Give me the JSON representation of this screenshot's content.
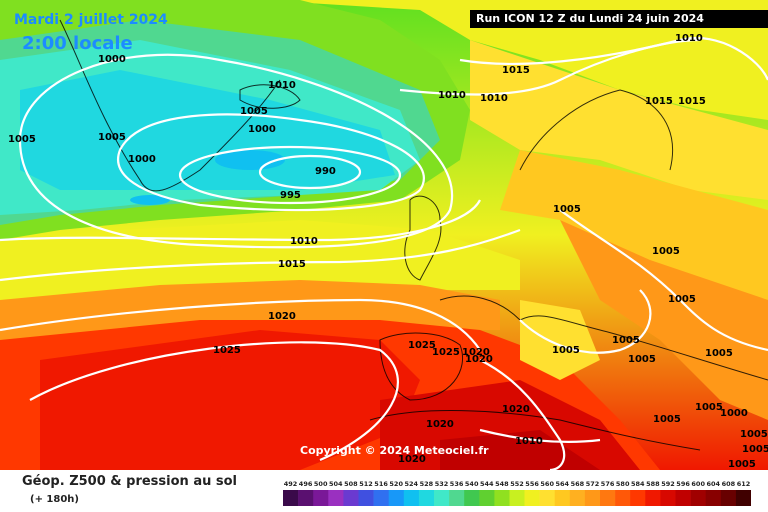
{
  "header": {
    "date": "Mardi 2 juillet 2024",
    "time": "2:00 locale",
    "run": "Run ICON 12 Z du Lundi 24 juin 2024"
  },
  "copyright": "Copyright © 2024 Meteociel.fr",
  "legend": {
    "title": "Géop. Z500 & pression au sol",
    "subtitle": "(+ 180h)",
    "scale_values": [
      "492",
      "496",
      "500",
      "504",
      "508",
      "512",
      "516",
      "520",
      "524",
      "528",
      "532",
      "536",
      "540",
      "544",
      "548",
      "552",
      "556",
      "560",
      "564",
      "568",
      "572",
      "576",
      "580",
      "584",
      "588",
      "592",
      "596",
      "600",
      "604",
      "608",
      "612"
    ],
    "scale_colors": [
      "#3a0a4a",
      "#5a1070",
      "#7a1898",
      "#9a30c0",
      "#6a3ad0",
      "#4050e0",
      "#3070f0",
      "#1898f8",
      "#10c0f0",
      "#20d8e0",
      "#40e8c8",
      "#50d890",
      "#40c850",
      "#60d030",
      "#90e020",
      "#c8f020",
      "#f0f020",
      "#ffe030",
      "#ffc820",
      "#ffb020",
      "#ff9818",
      "#ff7810",
      "#ff5808",
      "#ff3800",
      "#f01800",
      "#d80800",
      "#c00000",
      "#a00000",
      "#880000",
      "#680000",
      "#400000"
    ]
  },
  "map": {
    "isobar_labels": [
      {
        "text": "1000"
      },
      {
        "text": "1005"
      },
      {
        "text": "1010"
      },
      {
        "text": "1005"
      },
      {
        "text": "1000"
      },
      {
        "text": "1005"
      },
      {
        "text": "1000"
      },
      {
        "text": "990"
      },
      {
        "text": "995"
      },
      {
        "text": "1010"
      },
      {
        "text": "1015"
      },
      {
        "text": "1010"
      },
      {
        "text": "1010"
      },
      {
        "text": "1015"
      },
      {
        "text": "1010"
      },
      {
        "text": "1015"
      },
      {
        "text": "1015"
      },
      {
        "text": "1005"
      },
      {
        "text": "1005"
      },
      {
        "text": "1005"
      },
      {
        "text": "1020"
      },
      {
        "text": "1025"
      },
      {
        "text": "1025"
      },
      {
        "text": "1025"
      },
      {
        "text": "1020"
      },
      {
        "text": "1020"
      },
      {
        "text": "1005"
      },
      {
        "text": "1005"
      },
      {
        "text": "1005"
      },
      {
        "text": "1005"
      },
      {
        "text": "1005"
      },
      {
        "text": "1000"
      },
      {
        "text": "1005"
      },
      {
        "text": "1020"
      },
      {
        "text": "1020"
      },
      {
        "text": "1010"
      },
      {
        "text": "1020"
      },
      {
        "text": "1005"
      },
      {
        "text": "1005"
      },
      {
        "text": "1005"
      }
    ]
  }
}
